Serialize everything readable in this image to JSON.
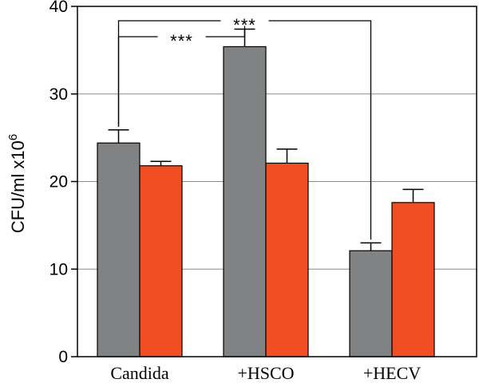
{
  "chart_data": {
    "type": "bar",
    "title": "",
    "ylabel": "CFU/ml x10",
    "ylabel_superscript": "6",
    "xlabel": "",
    "categories": [
      "Candida",
      "+HSCO",
      "+HECV"
    ],
    "ylim": [
      0,
      40
    ],
    "yticks": [
      "0",
      "10",
      "20",
      "30",
      "40"
    ],
    "grid": "horizontal",
    "legend": "none",
    "series": [
      {
        "color": "#808283",
        "values": [
          24.4,
          35.4,
          12.1
        ],
        "errors": [
          1.5,
          2.0,
          0.9
        ]
      },
      {
        "color": "#f04e23",
        "values": [
          21.8,
          22.1,
          17.6
        ],
        "errors": [
          0.5,
          1.6,
          1.5
        ]
      }
    ],
    "annotations": [
      {
        "label": "***",
        "from_category": 0,
        "to_category": 1,
        "series": 0
      },
      {
        "label": "***",
        "from_category": 0,
        "to_category": 2,
        "series": 0
      }
    ]
  }
}
